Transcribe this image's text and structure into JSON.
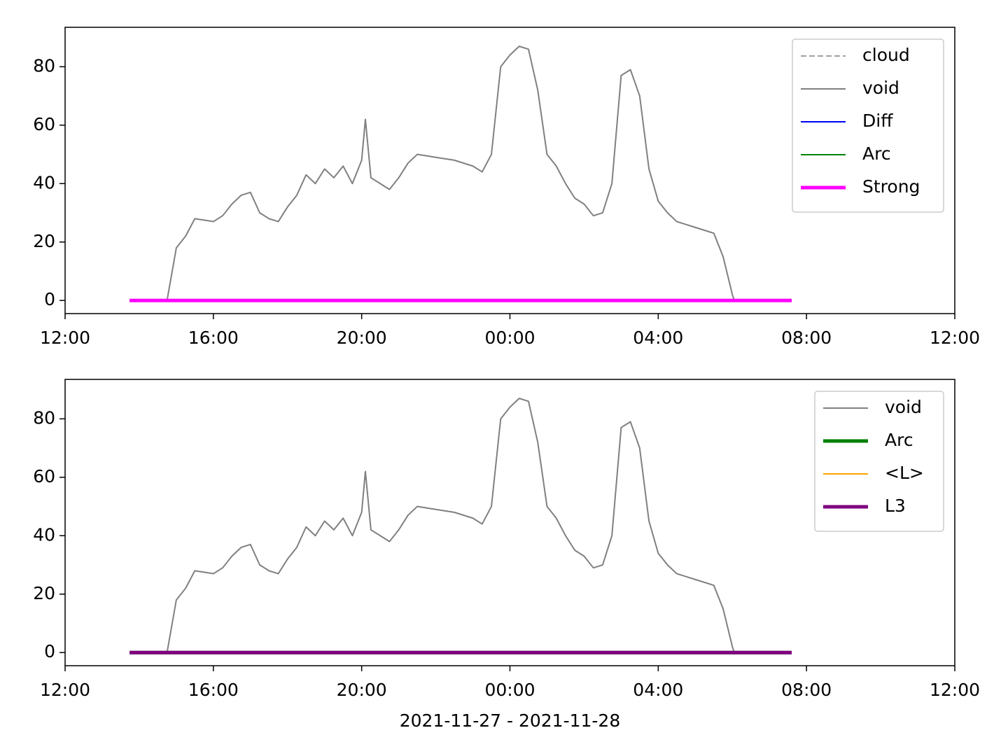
{
  "chart_data": [
    {
      "type": "line",
      "x": [
        1.74,
        2.75,
        3,
        3.25,
        3.5,
        4,
        4.25,
        4.5,
        4.75,
        5,
        5.25,
        5.5,
        5.75,
        6,
        6.25,
        6.5,
        6.75,
        7,
        7.25,
        7.5,
        7.75,
        8,
        8.1,
        8.25,
        8.5,
        8.75,
        9,
        9.25,
        9.5,
        10,
        10.5,
        11,
        11.25,
        11.5,
        11.75,
        12,
        12.25,
        12.5,
        12.75,
        13,
        13.25,
        13.5,
        13.75,
        14,
        14.25,
        14.5,
        14.75,
        15,
        15.25,
        15.5,
        15.75,
        16,
        16.25,
        16.5,
        16.75,
        17,
        17.5,
        17.75,
        18,
        18.05,
        19.6
      ],
      "series": [
        {
          "name": "cloud",
          "color": "#808080",
          "linestyle": "dashed",
          "linewidth": 1.5,
          "values": [
            0,
            0,
            0,
            0,
            0,
            0,
            0,
            0,
            0,
            0,
            0,
            0,
            0,
            0,
            0,
            0,
            0,
            0,
            0,
            0,
            0,
            0,
            0,
            0,
            0,
            0,
            0,
            0,
            0,
            0,
            0,
            0,
            0,
            0,
            0,
            0,
            0,
            0,
            0,
            0,
            0,
            0,
            0,
            0,
            0,
            0,
            0,
            0,
            0,
            0,
            0,
            0,
            0,
            0,
            0,
            0,
            0,
            0,
            0,
            0,
            0
          ]
        },
        {
          "name": "void",
          "color": "#808080",
          "linestyle": "solid",
          "linewidth": 2,
          "values": [
            0,
            0,
            18,
            22,
            28,
            27,
            29,
            33,
            36,
            37,
            30,
            28,
            27,
            32,
            36,
            43,
            40,
            45,
            42,
            46,
            40,
            48,
            62,
            42,
            40,
            38,
            42,
            47,
            50,
            49,
            48,
            46,
            44,
            50,
            80,
            84,
            87,
            86,
            72,
            50,
            46,
            40,
            35,
            33,
            29,
            30,
            40,
            77,
            79,
            70,
            45,
            34,
            30,
            27,
            26,
            25,
            23,
            15,
            2,
            0,
            0
          ]
        },
        {
          "name": "Diff",
          "color": "#0000ff",
          "linestyle": "solid",
          "linewidth": 2,
          "values": [
            0,
            0,
            0,
            0,
            0,
            0,
            0,
            0,
            0,
            0,
            0,
            0,
            0,
            0,
            0,
            0,
            0,
            0,
            0,
            0,
            0,
            0,
            0,
            0,
            0,
            0,
            0,
            0,
            0,
            0,
            0,
            0,
            0,
            0,
            0,
            0,
            0,
            0,
            0,
            0,
            0,
            0,
            0,
            0,
            0,
            0,
            0,
            0,
            0,
            0,
            0,
            0,
            0,
            0,
            0,
            0,
            0,
            0,
            0,
            0,
            0
          ]
        },
        {
          "name": "Arc",
          "color": "#008000",
          "linestyle": "solid",
          "linewidth": 2,
          "values": [
            0,
            0,
            0,
            0,
            0,
            0,
            0,
            0,
            0,
            0,
            0,
            0,
            0,
            0,
            0,
            0,
            0,
            0,
            0,
            0,
            0,
            0,
            0,
            0,
            0,
            0,
            0,
            0,
            0,
            0,
            0,
            0,
            0,
            0,
            0,
            0,
            0,
            0,
            0,
            0,
            0,
            0,
            0,
            0,
            0,
            0,
            0,
            0,
            0,
            0,
            0,
            0,
            0,
            0,
            0,
            0,
            0,
            0,
            0,
            0,
            0
          ]
        },
        {
          "name": "Strong",
          "color": "#ff00ff",
          "linestyle": "solid",
          "linewidth": 5,
          "values": [
            0,
            0,
            0,
            0,
            0,
            0,
            0,
            0,
            0,
            0,
            0,
            0,
            0,
            0,
            0,
            0,
            0,
            0,
            0,
            0,
            0,
            0,
            0,
            0,
            0,
            0,
            0,
            0,
            0,
            0,
            0,
            0,
            0,
            0,
            0,
            0,
            0,
            0,
            0,
            0,
            0,
            0,
            0,
            0,
            0,
            0,
            0,
            0,
            0,
            0,
            0,
            0,
            0,
            0,
            0,
            0,
            0,
            0,
            0,
            0,
            0
          ]
        }
      ],
      "xlim": [
        0,
        24
      ],
      "xticks": [
        {
          "value": 0,
          "label": "12:00"
        },
        {
          "value": 4,
          "label": "16:00"
        },
        {
          "value": 8,
          "label": "20:00"
        },
        {
          "value": 12,
          "label": "00:00"
        },
        {
          "value": 16,
          "label": "04:00"
        },
        {
          "value": 20,
          "label": "08:00"
        },
        {
          "value": 24,
          "label": "12:00"
        }
      ],
      "ylim": [
        -4.5,
        93.5
      ],
      "yticks": [
        0,
        20,
        40,
        60,
        80
      ],
      "legend": "upper right"
    },
    {
      "type": "line",
      "x": [
        1.74,
        2.75,
        3,
        3.25,
        3.5,
        4,
        4.25,
        4.5,
        4.75,
        5,
        5.25,
        5.5,
        5.75,
        6,
        6.25,
        6.5,
        6.75,
        7,
        7.25,
        7.5,
        7.75,
        8,
        8.1,
        8.25,
        8.5,
        8.75,
        9,
        9.25,
        9.5,
        10,
        10.5,
        11,
        11.25,
        11.5,
        11.75,
        12,
        12.25,
        12.5,
        12.75,
        13,
        13.25,
        13.5,
        13.75,
        14,
        14.25,
        14.5,
        14.75,
        15,
        15.25,
        15.5,
        15.75,
        16,
        16.25,
        16.5,
        16.75,
        17,
        17.5,
        17.75,
        18,
        18.05,
        19.6
      ],
      "series": [
        {
          "name": "void",
          "color": "#808080",
          "linestyle": "solid",
          "linewidth": 2,
          "values": [
            0,
            0,
            18,
            22,
            28,
            27,
            29,
            33,
            36,
            37,
            30,
            28,
            27,
            32,
            36,
            43,
            40,
            45,
            42,
            46,
            40,
            48,
            62,
            42,
            40,
            38,
            42,
            47,
            50,
            49,
            48,
            46,
            44,
            50,
            80,
            84,
            87,
            86,
            72,
            50,
            46,
            40,
            35,
            33,
            29,
            30,
            40,
            77,
            79,
            70,
            45,
            34,
            30,
            27,
            26,
            25,
            23,
            15,
            2,
            0,
            0
          ]
        },
        {
          "name": "Arc",
          "color": "#008000",
          "linestyle": "solid",
          "linewidth": 5,
          "values": [
            0,
            0,
            0,
            0,
            0,
            0,
            0,
            0,
            0,
            0,
            0,
            0,
            0,
            0,
            0,
            0,
            0,
            0,
            0,
            0,
            0,
            0,
            0,
            0,
            0,
            0,
            0,
            0,
            0,
            0,
            0,
            0,
            0,
            0,
            0,
            0,
            0,
            0,
            0,
            0,
            0,
            0,
            0,
            0,
            0,
            0,
            0,
            0,
            0,
            0,
            0,
            0,
            0,
            0,
            0,
            0,
            0,
            0,
            0,
            0,
            0
          ]
        },
        {
          "name": "<L>",
          "color": "#ffa500",
          "linestyle": "solid",
          "linewidth": 2,
          "values": [
            0,
            0,
            0,
            0,
            0,
            0,
            0,
            0,
            0,
            0,
            0,
            0,
            0,
            0,
            0,
            0,
            0,
            0,
            0,
            0,
            0,
            0,
            0,
            0,
            0,
            0,
            0,
            0,
            0,
            0,
            0,
            0,
            0,
            0,
            0,
            0,
            0,
            0,
            0,
            0,
            0,
            0,
            0,
            0,
            0,
            0,
            0,
            0,
            0,
            0,
            0,
            0,
            0,
            0,
            0,
            0,
            0,
            0,
            0,
            0,
            0
          ]
        },
        {
          "name": "L3",
          "color": "#800080",
          "linestyle": "solid",
          "linewidth": 5,
          "values": [
            0,
            0,
            0,
            0,
            0,
            0,
            0,
            0,
            0,
            0,
            0,
            0,
            0,
            0,
            0,
            0,
            0,
            0,
            0,
            0,
            0,
            0,
            0,
            0,
            0,
            0,
            0,
            0,
            0,
            0,
            0,
            0,
            0,
            0,
            0,
            0,
            0,
            0,
            0,
            0,
            0,
            0,
            0,
            0,
            0,
            0,
            0,
            0,
            0,
            0,
            0,
            0,
            0,
            0,
            0,
            0,
            0,
            0,
            0,
            0,
            0
          ]
        }
      ],
      "xlim": [
        0,
        24
      ],
      "xticks": [
        {
          "value": 0,
          "label": "12:00"
        },
        {
          "value": 4,
          "label": "16:00"
        },
        {
          "value": 8,
          "label": "20:00"
        },
        {
          "value": 12,
          "label": "00:00"
        },
        {
          "value": 16,
          "label": "04:00"
        },
        {
          "value": 20,
          "label": "08:00"
        },
        {
          "value": 24,
          "label": "12:00"
        }
      ],
      "ylim": [
        -4.5,
        93.5
      ],
      "yticks": [
        0,
        20,
        40,
        60,
        80
      ],
      "legend": "upper right",
      "xlabel": "2021-11-27 - 2021-11-28"
    }
  ]
}
